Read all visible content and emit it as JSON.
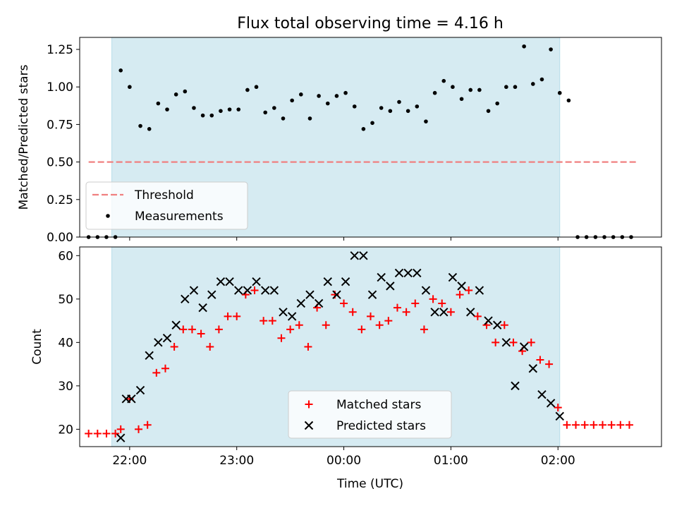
{
  "figure": {
    "title": "Flux total observing time = 4.16 h",
    "xlabel": "Time (UTC)",
    "colors": {
      "band": "#add8e6",
      "threshold": "#f08080",
      "measurement": "#000000",
      "matched": "#ff0000",
      "predicted": "#000000"
    }
  },
  "chart_data": [
    {
      "type": "scatter",
      "panel": "ratio",
      "title": "Flux total observing time = 4.16 h",
      "ylabel": "Matched/Predicted stars",
      "xlim": [
        "21:32",
        "02:58"
      ],
      "ylim": [
        0,
        1.33
      ],
      "x_tick_labels": [
        "22:00",
        "23:00",
        "00:00",
        "01:00",
        "02:00"
      ],
      "x_ticks": [
        "22:00",
        "23:00",
        "00:00",
        "01:00",
        "02:00"
      ],
      "y_ticks": [
        0.0,
        0.25,
        0.5,
        0.75,
        1.0,
        1.25
      ],
      "y_tick_labels": [
        "0.00",
        "0.25",
        "0.50",
        "0.75",
        "1.00",
        "1.25"
      ],
      "shaded_interval": [
        "21:50",
        "02:01"
      ],
      "legend": {
        "position": "lower-left",
        "entries": [
          "Threshold",
          "Measurements"
        ]
      },
      "threshold": {
        "name": "Threshold",
        "value": 0.5,
        "x_range": [
          "21:37",
          "02:45"
        ],
        "style": "dashed"
      },
      "series": [
        {
          "name": "Measurements",
          "marker": "dot",
          "x": [
            "21:37",
            "21:42",
            "21:47",
            "21:52",
            "21:55",
            "22:00",
            "22:06",
            "22:11",
            "22:16",
            "22:21",
            "22:26",
            "22:31",
            "22:36",
            "22:41",
            "22:46",
            "22:51",
            "22:56",
            "23:01",
            "23:06",
            "23:11",
            "23:16",
            "23:21",
            "23:26",
            "23:31",
            "23:36",
            "23:41",
            "23:46",
            "23:51",
            "23:56",
            "00:01",
            "00:06",
            "00:11",
            "00:16",
            "00:21",
            "00:26",
            "00:31",
            "00:36",
            "00:41",
            "00:46",
            "00:51",
            "00:56",
            "01:01",
            "01:06",
            "01:11",
            "01:16",
            "01:21",
            "01:26",
            "01:31",
            "01:36",
            "01:41",
            "01:46",
            "01:51",
            "01:56",
            "02:01",
            "02:06",
            "02:11",
            "02:16",
            "02:21",
            "02:26",
            "02:31",
            "02:36",
            "02:41"
          ],
          "y": [
            0.0,
            0.0,
            0.0,
            0.0,
            1.11,
            1.0,
            0.74,
            0.72,
            0.89,
            0.85,
            0.95,
            0.97,
            0.86,
            0.81,
            0.81,
            0.84,
            0.85,
            0.85,
            0.98,
            1.0,
            0.83,
            0.86,
            0.79,
            0.91,
            0.95,
            0.79,
            0.94,
            0.89,
            0.94,
            0.96,
            0.87,
            0.72,
            0.76,
            0.86,
            0.84,
            0.9,
            0.84,
            0.87,
            0.77,
            0.96,
            1.04,
            1.0,
            0.92,
            0.98,
            0.98,
            0.84,
            0.89,
            1.0,
            1.0,
            1.27,
            1.02,
            1.05,
            1.25,
            0.96,
            0.91,
            0.0,
            0.0,
            0.0,
            0.0,
            0.0,
            0.0,
            0.0
          ]
        }
      ]
    },
    {
      "type": "scatter",
      "panel": "counts",
      "ylabel": "Count",
      "xlabel": "Time (UTC)",
      "xlim": [
        "21:32",
        "02:58"
      ],
      "ylim": [
        16,
        62
      ],
      "x_ticks": [
        "22:00",
        "23:00",
        "00:00",
        "01:00",
        "02:00"
      ],
      "x_tick_labels": [
        "22:00",
        "23:00",
        "00:00",
        "01:00",
        "02:00"
      ],
      "y_ticks": [
        20,
        30,
        40,
        50,
        60
      ],
      "y_tick_labels": [
        "20",
        "30",
        "40",
        "50",
        "60"
      ],
      "shaded_interval": [
        "21:50",
        "02:01"
      ],
      "legend": {
        "position": "lower-center",
        "entries": [
          "Matched stars",
          "Predicted stars"
        ]
      },
      "series": [
        {
          "name": "Matched stars",
          "marker": "plus",
          "x": [
            "21:37",
            "21:42",
            "21:47",
            "21:52",
            "21:55",
            "22:00",
            "22:05",
            "22:10",
            "22:15",
            "22:20",
            "22:25",
            "22:30",
            "22:35",
            "22:40",
            "22:45",
            "22:50",
            "22:55",
            "23:00",
            "23:05",
            "23:10",
            "23:15",
            "23:20",
            "23:25",
            "23:30",
            "23:35",
            "23:40",
            "23:45",
            "23:50",
            "23:55",
            "00:00",
            "00:05",
            "00:10",
            "00:15",
            "00:20",
            "00:25",
            "00:30",
            "00:35",
            "00:40",
            "00:45",
            "00:50",
            "00:55",
            "01:00",
            "01:05",
            "01:10",
            "01:15",
            "01:20",
            "01:25",
            "01:30",
            "01:35",
            "01:40",
            "01:45",
            "01:50",
            "01:55",
            "02:00",
            "02:05",
            "02:10",
            "02:15",
            "02:20",
            "02:25",
            "02:30",
            "02:35",
            "02:40"
          ],
          "y": [
            19,
            19,
            19,
            19,
            20,
            27,
            20,
            21,
            33,
            34,
            39,
            43,
            43,
            42,
            39,
            43,
            46,
            46,
            51,
            52,
            45,
            45,
            41,
            43,
            44,
            39,
            48,
            44,
            51,
            49,
            47,
            43,
            46,
            44,
            45,
            48,
            47,
            49,
            43,
            50,
            49,
            47,
            51,
            52,
            46,
            44,
            40,
            44,
            40,
            38,
            40,
            36,
            35,
            25,
            21,
            21,
            21,
            21,
            21,
            21,
            21,
            21
          ]
        },
        {
          "name": "Predicted stars",
          "marker": "x",
          "x": [
            "21:55",
            "21:58",
            "22:01",
            "22:06",
            "22:11",
            "22:16",
            "22:21",
            "22:26",
            "22:31",
            "22:36",
            "22:41",
            "22:46",
            "22:51",
            "22:56",
            "23:01",
            "23:06",
            "23:11",
            "23:16",
            "23:21",
            "23:26",
            "23:31",
            "23:36",
            "23:41",
            "23:46",
            "23:51",
            "23:56",
            "00:01",
            "00:06",
            "00:11",
            "00:16",
            "00:21",
            "00:26",
            "00:31",
            "00:36",
            "00:41",
            "00:46",
            "00:51",
            "00:56",
            "01:01",
            "01:06",
            "01:11",
            "01:16",
            "01:21",
            "01:26",
            "01:31",
            "01:36",
            "01:41",
            "01:46",
            "01:51",
            "01:56",
            "02:01"
          ],
          "y": [
            18,
            27,
            27,
            29,
            37,
            40,
            41,
            44,
            50,
            52,
            48,
            51,
            54,
            54,
            52,
            52,
            54,
            52,
            52,
            47,
            46,
            49,
            51,
            49,
            54,
            51,
            54,
            60,
            60,
            51,
            55,
            53,
            56,
            56,
            56,
            52,
            47,
            47,
            55,
            53,
            47,
            52,
            45,
            44,
            40,
            30,
            39,
            34,
            28,
            26,
            23
          ]
        }
      ]
    }
  ]
}
